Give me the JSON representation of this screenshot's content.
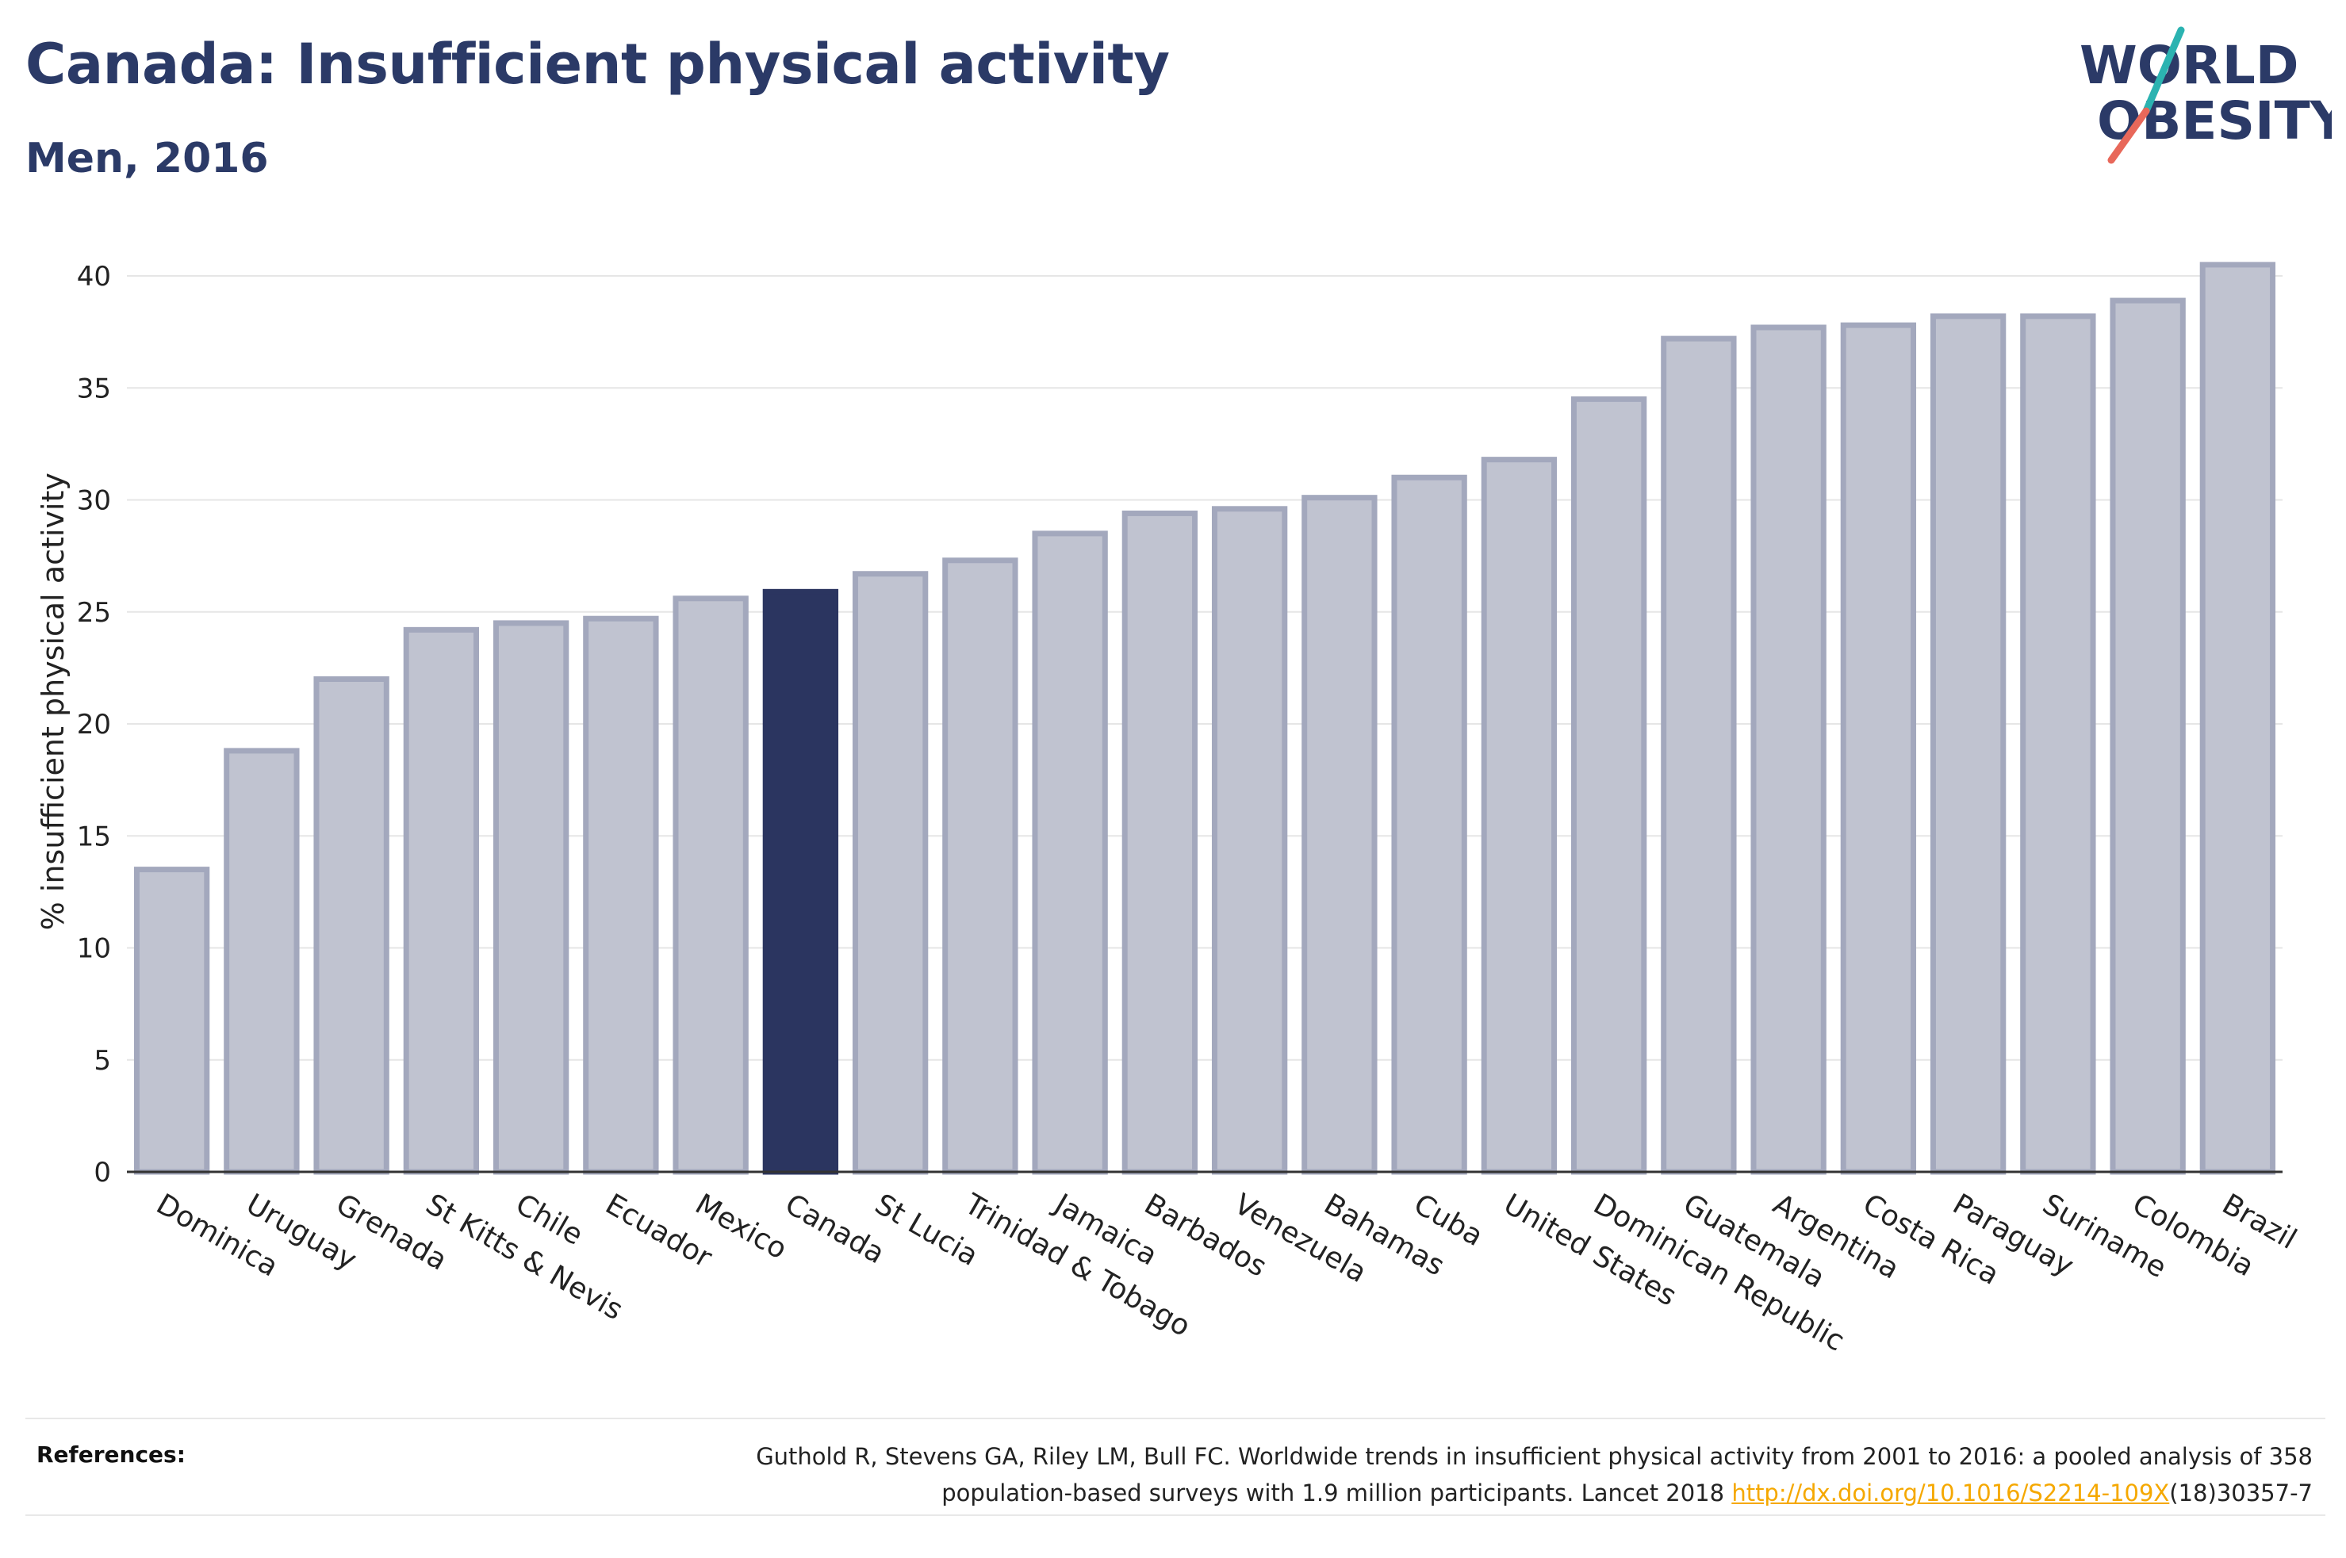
{
  "header": {
    "title": "Canada: Insufficient physical activity",
    "subtitle": "Men, 2016"
  },
  "logo": {
    "line1": "WORLD",
    "line2": "OBESITY",
    "text_color": "#2b3a67",
    "accent_teal": "#2bb3b1",
    "accent_coral": "#e8685a"
  },
  "chart_data": {
    "type": "bar",
    "title": "Canada: Insufficient physical activity",
    "subtitle": "Men, 2016",
    "xlabel": "",
    "ylabel": "% insufficient physical activity",
    "ylim": [
      0,
      42
    ],
    "yticks": [
      0,
      5,
      10,
      15,
      20,
      25,
      30,
      35,
      40
    ],
    "grid": true,
    "highlight": "Canada",
    "colors": {
      "highlight": "#2b3560",
      "default_fill": "#c0c3d0",
      "default_stroke": "#a3a8bd"
    },
    "categories": [
      "Dominica",
      "Uruguay",
      "Grenada",
      "St Kitts & Nevis",
      "Chile",
      "Ecuador",
      "Mexico",
      "Canada",
      "St Lucia",
      "Trinidad & Tobago",
      "Jamaica",
      "Barbados",
      "Venezuela",
      "Bahamas",
      "Cuba",
      "United States",
      "Dominican Republic",
      "Guatemala",
      "Argentina",
      "Costa Rica",
      "Paraguay",
      "Suriname",
      "Colombia",
      "Brazil"
    ],
    "values": [
      13.5,
      18.8,
      22.0,
      24.2,
      24.5,
      24.7,
      25.6,
      25.9,
      26.7,
      27.3,
      28.5,
      29.4,
      29.6,
      30.1,
      31.0,
      31.8,
      34.5,
      37.2,
      37.7,
      37.8,
      38.2,
      38.2,
      38.9,
      40.5
    ]
  },
  "references": {
    "label": "References:",
    "line1": "Guthold R, Stevens GA, Riley LM, Bull FC. Worldwide trends in insufficient physical activity from 2001 to 2016: a pooled analysis of 358",
    "line2_prefix": "population-based surveys with 1.9 million participants. Lancet 2018 ",
    "link": "http://dx.doi.org/10.1016/S2214-109X",
    "line2_suffix": "(18)30357-7"
  }
}
